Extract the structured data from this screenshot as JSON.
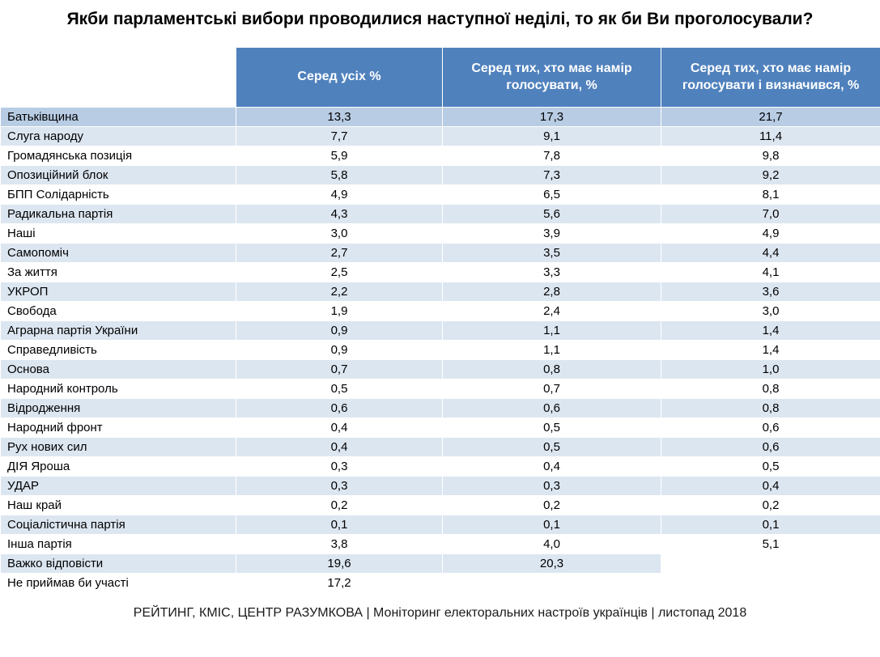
{
  "footer": "РЕЙТИНГ, КМІС, ЦЕНТР РАЗУМКОВА |  Моніторинг електоральних настроїв українців | листопад 2018",
  "colors": {
    "header_bg": "#4f81bd",
    "header_text": "#ffffff",
    "row_highlight": "#b8cce4",
    "row_band": "#dce6f1",
    "row_plain": "#ffffff",
    "text": "#000000"
  },
  "chart_data": {
    "type": "table",
    "title": "Якби парламентські вибори проводилися наступної неділі, то як би Ви проголосували?",
    "decimal_separator": ",",
    "value_columns": [
      "Серед усіх %",
      "Серед тих, хто має намір голосувати, %",
      "Серед тих, хто має намір голосувати і визначився, %"
    ],
    "rows": [
      {
        "party": "Батьківщина",
        "values": [
          13.3,
          17.3,
          21.7
        ]
      },
      {
        "party": "Слуга народу",
        "values": [
          7.7,
          9.1,
          11.4
        ]
      },
      {
        "party": "Громадянська позиція",
        "values": [
          5.9,
          7.8,
          9.8
        ]
      },
      {
        "party": "Опозиційний блок",
        "values": [
          5.8,
          7.3,
          9.2
        ]
      },
      {
        "party": "БПП Солідарність",
        "values": [
          4.9,
          6.5,
          8.1
        ]
      },
      {
        "party": "Радикальна партія",
        "values": [
          4.3,
          5.6,
          7.0
        ]
      },
      {
        "party": "Наші",
        "values": [
          3.0,
          3.9,
          4.9
        ]
      },
      {
        "party": "Самопоміч",
        "values": [
          2.7,
          3.5,
          4.4
        ]
      },
      {
        "party": "За життя",
        "values": [
          2.5,
          3.3,
          4.1
        ]
      },
      {
        "party": "УКРОП",
        "values": [
          2.2,
          2.8,
          3.6
        ]
      },
      {
        "party": "Свобода",
        "values": [
          1.9,
          2.4,
          3.0
        ]
      },
      {
        "party": "Аграрна партія України",
        "values": [
          0.9,
          1.1,
          1.4
        ]
      },
      {
        "party": "Справедливість",
        "values": [
          0.9,
          1.1,
          1.4
        ]
      },
      {
        "party": "Основа",
        "values": [
          0.7,
          0.8,
          1.0
        ]
      },
      {
        "party": "Народний контроль",
        "values": [
          0.5,
          0.7,
          0.8
        ]
      },
      {
        "party": "Відродження",
        "values": [
          0.6,
          0.6,
          0.8
        ]
      },
      {
        "party": "Народний фронт",
        "values": [
          0.4,
          0.5,
          0.6
        ]
      },
      {
        "party": "Рух нових сил",
        "values": [
          0.4,
          0.5,
          0.6
        ]
      },
      {
        "party": "ДІЯ Яроша",
        "values": [
          0.3,
          0.4,
          0.5
        ]
      },
      {
        "party": "УДАР",
        "values": [
          0.3,
          0.3,
          0.4
        ]
      },
      {
        "party": "Наш край",
        "values": [
          0.2,
          0.2,
          0.2
        ]
      },
      {
        "party": "Соціалістична партія",
        "values": [
          0.1,
          0.1,
          0.1
        ]
      },
      {
        "party": "Інша партія",
        "values": [
          3.8,
          4.0,
          5.1
        ]
      },
      {
        "party": "Важко відповісти",
        "values": [
          19.6,
          20.3,
          null
        ]
      },
      {
        "party": "Не приймав би участі",
        "values": [
          17.2,
          null,
          null
        ]
      }
    ]
  }
}
